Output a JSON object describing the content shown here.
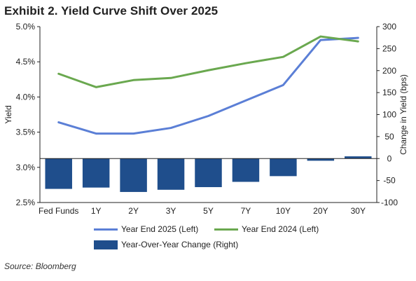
{
  "title": "Exhibit 2. Yield Curve Shift Over 2025",
  "source": "Source: Bloomberg",
  "colors": {
    "year_end_2025": "#5b7fd6",
    "year_end_2024": "#6aa84f",
    "yoy_change": "#1f4e8c"
  },
  "chart_data": {
    "type": "bar",
    "title": "Exhibit 2. Yield Curve Shift Over 2025",
    "categories": [
      "Fed Funds",
      "1Y",
      "2Y",
      "3Y",
      "5Y",
      "7Y",
      "10Y",
      "20Y",
      "30Y"
    ],
    "ylabel": "Yield",
    "y2label": "Change in Yield (bps)",
    "ylim": [
      2.5,
      5.0
    ],
    "y_ticks": [
      "2.5%",
      "3.0%",
      "3.5%",
      "4.0%",
      "4.5%",
      "5.0%"
    ],
    "y2lim": [
      -100,
      300
    ],
    "y2_ticks": [
      "-100",
      "-50",
      "0",
      "50",
      "100",
      "150",
      "200",
      "250",
      "300"
    ],
    "grid": false,
    "legend_position": "bottom",
    "series": [
      {
        "name": "Year End 2025 (Left)",
        "type": "line",
        "axis": "left",
        "values": [
          3.64,
          3.48,
          3.48,
          3.56,
          3.73,
          3.95,
          4.17,
          4.81,
          4.84
        ]
      },
      {
        "name": "Year End 2024 (Left)",
        "type": "line",
        "axis": "left",
        "values": [
          4.33,
          4.14,
          4.24,
          4.27,
          4.38,
          4.48,
          4.57,
          4.86,
          4.79
        ]
      },
      {
        "name": "Year-Over-Year Change (Right)",
        "type": "bar",
        "axis": "right",
        "values": [
          -69,
          -66,
          -76,
          -71,
          -65,
          -53,
          -40,
          -5,
          5
        ]
      }
    ]
  }
}
